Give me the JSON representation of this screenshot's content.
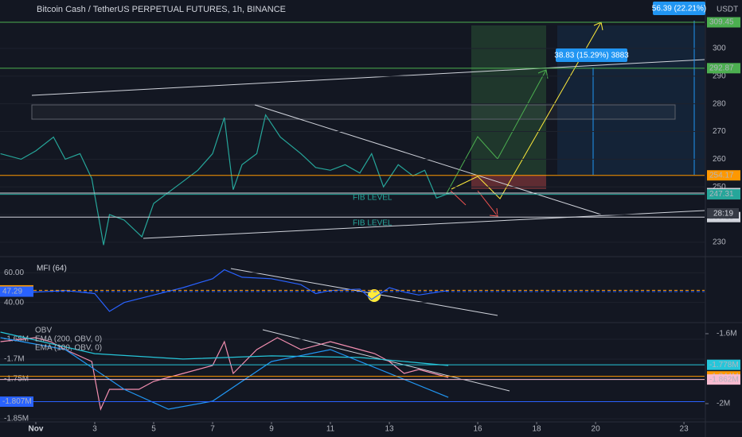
{
  "chart_data": [
    {
      "type": "line",
      "title": "Bitcoin Cash / TetherUS PERPETUAL FUTURES, 1h, BINANCE",
      "currency": "USDT",
      "x": [
        -0.2,
        0.5,
        1,
        1.6,
        2,
        2.5,
        2.9,
        3.3,
        3.5,
        4,
        4.6,
        5,
        5.5,
        6,
        6.5,
        7,
        7.4,
        7.7,
        8,
        8.5,
        8.8,
        9.3,
        10,
        10.5,
        11,
        11.5,
        12,
        12.4,
        12.8,
        13.3,
        13.8,
        14.2,
        14.6,
        15.1
      ],
      "values": [
        262,
        260,
        263,
        268,
        260,
        262,
        253,
        229,
        240,
        238,
        232,
        244,
        248,
        252,
        256,
        262,
        275,
        249,
        258,
        262,
        276,
        268,
        262,
        257,
        256,
        258,
        255,
        262,
        250,
        258,
        254,
        256,
        246,
        248
      ],
      "color": "#26a69a",
      "xlim": [
        -0.216,
        23.7
      ],
      "ylim": [
        225.1,
        317.5
      ],
      "yticks": [
        230,
        240,
        250,
        260,
        270,
        280,
        290,
        300
      ],
      "levels": [
        {
          "value": 309.45,
          "color": "#4caf50"
        },
        {
          "value": 292.87,
          "color": "#4caf50"
        },
        {
          "value": 254.17,
          "color": "#ff9800"
        },
        {
          "value": 247.76,
          "color": "#d1d4dc"
        },
        {
          "value": 247.31,
          "color": "#26a69a"
        },
        {
          "value": 239.1,
          "label": "239.10",
          "color": "#d1d4dc"
        }
      ],
      "countdown": "28:19",
      "annotations": [
        "FIB LEVEL",
        "FIB LEVEL"
      ],
      "measures": [
        "56.39 (22.21%)",
        "38.83 (15.29%) 3883"
      ]
    },
    {
      "type": "line",
      "title": "MFI (64)",
      "x": [
        -0.2,
        1,
        2,
        3,
        3.5,
        4,
        5,
        6,
        7,
        7.4,
        8,
        9,
        10,
        10.5,
        11,
        12,
        12.4,
        13,
        13.5,
        14,
        15
      ],
      "values": [
        46,
        47,
        48,
        46,
        34,
        40,
        45,
        50,
        56,
        62,
        57,
        56,
        52,
        46,
        48,
        49,
        42,
        50,
        47,
        45,
        48
      ],
      "color": "#2962ff",
      "xlim": [
        -0.216,
        23.7
      ],
      "ylim": [
        27.0,
        70.3
      ],
      "yticks": [
        {
          "value": 60,
          "label": "60.00"
        },
        {
          "value": 40,
          "label": "40.00"
        }
      ],
      "levels": [
        {
          "value": 48.15,
          "color": "#ff9800"
        },
        {
          "value": 47.29,
          "color": "#2962ff"
        }
      ]
    },
    {
      "type": "line",
      "xlim": [
        -0.216,
        23.7
      ],
      "ylim": [
        -1856000,
        -1610000
      ],
      "y2lim": [
        -2100000,
        -1541000
      ],
      "series": [
        {
          "name": "OBV",
          "color": "#f48fb1",
          "x": [
            -0.2,
            1,
            1.5,
            2,
            2.9,
            3.2,
            3.5,
            4.5,
            5,
            6,
            7,
            7.4,
            7.7,
            8.5,
            9.2,
            10,
            11,
            12,
            12.5,
            13,
            13.5,
            14,
            15
          ],
          "values": [
            -1656000,
            -1646000,
            -1656000,
            -1676000,
            -1706000,
            -1826000,
            -1776000,
            -1776000,
            -1756000,
            -1736000,
            -1716000,
            -1656000,
            -1736000,
            -1676000,
            -1646000,
            -1676000,
            -1656000,
            -1676000,
            -1686000,
            -1706000,
            -1736000,
            -1726000,
            -1746000
          ]
        },
        {
          "name": "EMA (200, OBV, 0)",
          "color": "#26c6da",
          "axis": "y2",
          "x": [
            -0.2,
            3,
            6,
            9,
            12,
            15
          ],
          "values": [
            -1591000,
            -1714000,
            -1745000,
            -1727000,
            -1736000,
            -1782000
          ]
        },
        {
          "name": "EMA (100, OBV, 0)",
          "color": "#2196f3",
          "axis": "y2",
          "x": [
            -0.2,
            2,
            4,
            5.5,
            7,
            9,
            11,
            13,
            15
          ],
          "values": [
            -1623000,
            -1691000,
            -1918000,
            -2032000,
            -1986000,
            -1759000,
            -1691000,
            -1827000,
            -1964000
          ]
        }
      ],
      "yticks": [
        {
          "value": -1650000,
          "label": "-1.65M"
        },
        {
          "value": -1700000,
          "label": "-1.7M"
        },
        {
          "value": -1750000,
          "label": "-1.75M"
        },
        {
          "value": -1850000,
          "label": "-1.85M"
        }
      ],
      "y2ticks": [
        {
          "value": -1600000,
          "label": "-1.6M"
        },
        {
          "value": -2000000,
          "label": "-2M"
        }
      ],
      "levels": [
        {
          "value": -1807000,
          "label": "-1.807M",
          "color": "#2962ff"
        },
        {
          "value": -1778000,
          "label": "-1.778M",
          "color": "#26c6da",
          "axis": "y2"
        },
        {
          "value": -1844000,
          "label": "-1.844M",
          "color": "#ff9800",
          "axis": "y2"
        },
        {
          "value": -1862000,
          "label": "-1.862M",
          "color": "#f8bbd0",
          "axis": "y2"
        }
      ],
      "xticks": [
        {
          "value": 1,
          "label": "Nov"
        },
        3,
        5,
        7,
        9,
        11,
        13,
        16,
        18,
        20,
        23
      ]
    }
  ]
}
